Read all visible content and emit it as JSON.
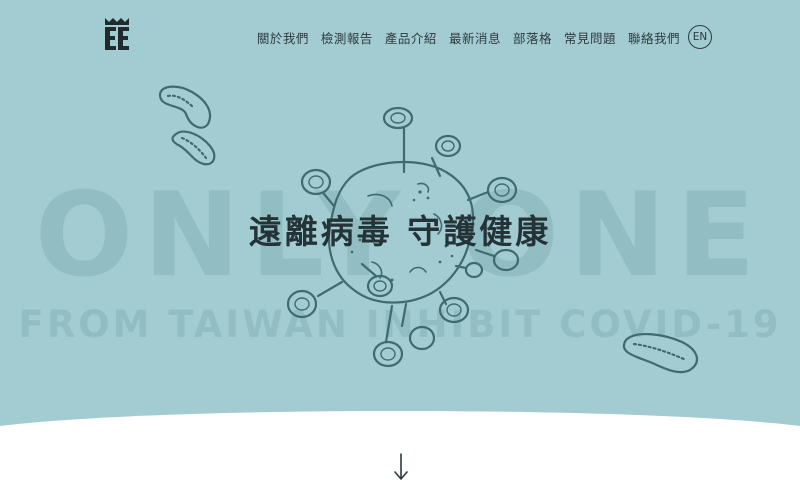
{
  "colors": {
    "hero_bg": "#a2ccd1",
    "text_dark": "#2d3b40",
    "line_art": "#3f6b6f"
  },
  "brand": {
    "logo_icon": "crown-ee-logo-icon"
  },
  "nav": {
    "items": [
      {
        "label": "關於我們"
      },
      {
        "label": "檢測報告"
      },
      {
        "label": "產品介紹"
      },
      {
        "label": "最新消息"
      },
      {
        "label": "部落格"
      },
      {
        "label": "常見問題"
      },
      {
        "label": "聯絡我們"
      }
    ],
    "lang_label": "EN"
  },
  "hero": {
    "bg_title": "ONLY ONE",
    "bg_subtitle": "FROM TAIWAN INHIBIT COVID-19",
    "headline": "遠離病毒 守護健康"
  },
  "scroll": {
    "icon": "arrow-down-icon"
  }
}
